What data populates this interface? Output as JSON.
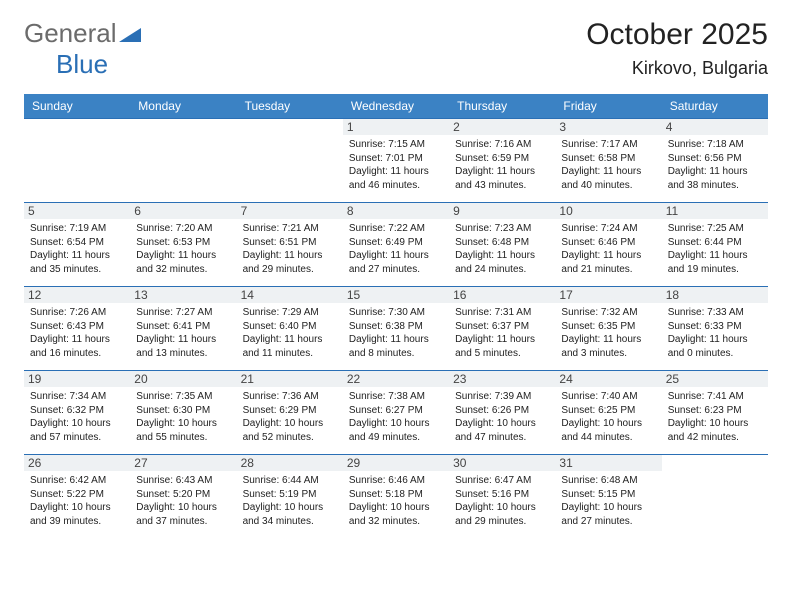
{
  "brand": {
    "part1": "General",
    "part2": "Blue"
  },
  "title": "October 2025",
  "location": "Kirkovo, Bulgaria",
  "colors": {
    "header_bg": "#3b82c4",
    "border": "#2a6fb5",
    "daynum_bg": "#eef1f3",
    "text": "#222222",
    "logo_gray": "#6b6b6b",
    "logo_blue": "#2a6fb5"
  },
  "weekdays": [
    "Sunday",
    "Monday",
    "Tuesday",
    "Wednesday",
    "Thursday",
    "Friday",
    "Saturday"
  ],
  "weeks": [
    [
      null,
      null,
      null,
      {
        "n": "1",
        "sr": "Sunrise: 7:15 AM",
        "ss": "Sunset: 7:01 PM",
        "d1": "Daylight: 11 hours",
        "d2": "and 46 minutes."
      },
      {
        "n": "2",
        "sr": "Sunrise: 7:16 AM",
        "ss": "Sunset: 6:59 PM",
        "d1": "Daylight: 11 hours",
        "d2": "and 43 minutes."
      },
      {
        "n": "3",
        "sr": "Sunrise: 7:17 AM",
        "ss": "Sunset: 6:58 PM",
        "d1": "Daylight: 11 hours",
        "d2": "and 40 minutes."
      },
      {
        "n": "4",
        "sr": "Sunrise: 7:18 AM",
        "ss": "Sunset: 6:56 PM",
        "d1": "Daylight: 11 hours",
        "d2": "and 38 minutes."
      }
    ],
    [
      {
        "n": "5",
        "sr": "Sunrise: 7:19 AM",
        "ss": "Sunset: 6:54 PM",
        "d1": "Daylight: 11 hours",
        "d2": "and 35 minutes."
      },
      {
        "n": "6",
        "sr": "Sunrise: 7:20 AM",
        "ss": "Sunset: 6:53 PM",
        "d1": "Daylight: 11 hours",
        "d2": "and 32 minutes."
      },
      {
        "n": "7",
        "sr": "Sunrise: 7:21 AM",
        "ss": "Sunset: 6:51 PM",
        "d1": "Daylight: 11 hours",
        "d2": "and 29 minutes."
      },
      {
        "n": "8",
        "sr": "Sunrise: 7:22 AM",
        "ss": "Sunset: 6:49 PM",
        "d1": "Daylight: 11 hours",
        "d2": "and 27 minutes."
      },
      {
        "n": "9",
        "sr": "Sunrise: 7:23 AM",
        "ss": "Sunset: 6:48 PM",
        "d1": "Daylight: 11 hours",
        "d2": "and 24 minutes."
      },
      {
        "n": "10",
        "sr": "Sunrise: 7:24 AM",
        "ss": "Sunset: 6:46 PM",
        "d1": "Daylight: 11 hours",
        "d2": "and 21 minutes."
      },
      {
        "n": "11",
        "sr": "Sunrise: 7:25 AM",
        "ss": "Sunset: 6:44 PM",
        "d1": "Daylight: 11 hours",
        "d2": "and 19 minutes."
      }
    ],
    [
      {
        "n": "12",
        "sr": "Sunrise: 7:26 AM",
        "ss": "Sunset: 6:43 PM",
        "d1": "Daylight: 11 hours",
        "d2": "and 16 minutes."
      },
      {
        "n": "13",
        "sr": "Sunrise: 7:27 AM",
        "ss": "Sunset: 6:41 PM",
        "d1": "Daylight: 11 hours",
        "d2": "and 13 minutes."
      },
      {
        "n": "14",
        "sr": "Sunrise: 7:29 AM",
        "ss": "Sunset: 6:40 PM",
        "d1": "Daylight: 11 hours",
        "d2": "and 11 minutes."
      },
      {
        "n": "15",
        "sr": "Sunrise: 7:30 AM",
        "ss": "Sunset: 6:38 PM",
        "d1": "Daylight: 11 hours",
        "d2": "and 8 minutes."
      },
      {
        "n": "16",
        "sr": "Sunrise: 7:31 AM",
        "ss": "Sunset: 6:37 PM",
        "d1": "Daylight: 11 hours",
        "d2": "and 5 minutes."
      },
      {
        "n": "17",
        "sr": "Sunrise: 7:32 AM",
        "ss": "Sunset: 6:35 PM",
        "d1": "Daylight: 11 hours",
        "d2": "and 3 minutes."
      },
      {
        "n": "18",
        "sr": "Sunrise: 7:33 AM",
        "ss": "Sunset: 6:33 PM",
        "d1": "Daylight: 11 hours",
        "d2": "and 0 minutes."
      }
    ],
    [
      {
        "n": "19",
        "sr": "Sunrise: 7:34 AM",
        "ss": "Sunset: 6:32 PM",
        "d1": "Daylight: 10 hours",
        "d2": "and 57 minutes."
      },
      {
        "n": "20",
        "sr": "Sunrise: 7:35 AM",
        "ss": "Sunset: 6:30 PM",
        "d1": "Daylight: 10 hours",
        "d2": "and 55 minutes."
      },
      {
        "n": "21",
        "sr": "Sunrise: 7:36 AM",
        "ss": "Sunset: 6:29 PM",
        "d1": "Daylight: 10 hours",
        "d2": "and 52 minutes."
      },
      {
        "n": "22",
        "sr": "Sunrise: 7:38 AM",
        "ss": "Sunset: 6:27 PM",
        "d1": "Daylight: 10 hours",
        "d2": "and 49 minutes."
      },
      {
        "n": "23",
        "sr": "Sunrise: 7:39 AM",
        "ss": "Sunset: 6:26 PM",
        "d1": "Daylight: 10 hours",
        "d2": "and 47 minutes."
      },
      {
        "n": "24",
        "sr": "Sunrise: 7:40 AM",
        "ss": "Sunset: 6:25 PM",
        "d1": "Daylight: 10 hours",
        "d2": "and 44 minutes."
      },
      {
        "n": "25",
        "sr": "Sunrise: 7:41 AM",
        "ss": "Sunset: 6:23 PM",
        "d1": "Daylight: 10 hours",
        "d2": "and 42 minutes."
      }
    ],
    [
      {
        "n": "26",
        "sr": "Sunrise: 6:42 AM",
        "ss": "Sunset: 5:22 PM",
        "d1": "Daylight: 10 hours",
        "d2": "and 39 minutes."
      },
      {
        "n": "27",
        "sr": "Sunrise: 6:43 AM",
        "ss": "Sunset: 5:20 PM",
        "d1": "Daylight: 10 hours",
        "d2": "and 37 minutes."
      },
      {
        "n": "28",
        "sr": "Sunrise: 6:44 AM",
        "ss": "Sunset: 5:19 PM",
        "d1": "Daylight: 10 hours",
        "d2": "and 34 minutes."
      },
      {
        "n": "29",
        "sr": "Sunrise: 6:46 AM",
        "ss": "Sunset: 5:18 PM",
        "d1": "Daylight: 10 hours",
        "d2": "and 32 minutes."
      },
      {
        "n": "30",
        "sr": "Sunrise: 6:47 AM",
        "ss": "Sunset: 5:16 PM",
        "d1": "Daylight: 10 hours",
        "d2": "and 29 minutes."
      },
      {
        "n": "31",
        "sr": "Sunrise: 6:48 AM",
        "ss": "Sunset: 5:15 PM",
        "d1": "Daylight: 10 hours",
        "d2": "and 27 minutes."
      },
      null
    ]
  ]
}
